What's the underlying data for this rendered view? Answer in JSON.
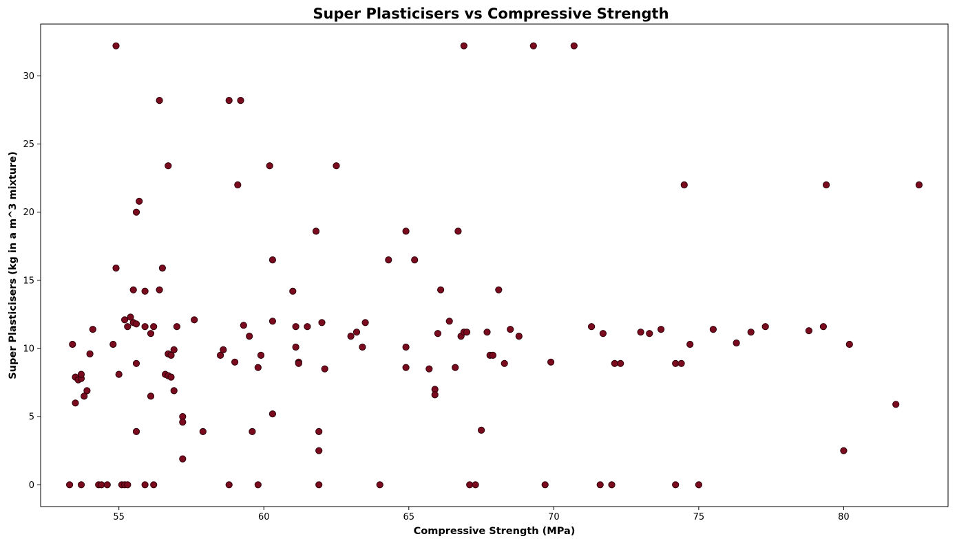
{
  "chart_data": {
    "type": "scatter",
    "title": "Super Plasticisers vs Compressive Strength",
    "xlabel": "Compressive Strength (MPa)",
    "ylabel": "Super Plasticisers (kg in a m^3 mixture)",
    "xlim": [
      52.3,
      83.6
    ],
    "ylim": [
      -1.6,
      33.8
    ],
    "xticks": [
      55,
      60,
      65,
      70,
      75,
      80
    ],
    "yticks": [
      0,
      5,
      10,
      15,
      20,
      25,
      30
    ],
    "grid": false,
    "legend": "none",
    "marker_color": "#7a0a1e",
    "marker_edge_color": "#2b0008",
    "points": [
      [
        53.3,
        0
      ],
      [
        53.7,
        0
      ],
      [
        54.3,
        0
      ],
      [
        54.4,
        0
      ],
      [
        54.6,
        0
      ],
      [
        55.1,
        0
      ],
      [
        55.2,
        0
      ],
      [
        55.3,
        0
      ],
      [
        55.9,
        0
      ],
      [
        56.2,
        0
      ],
      [
        58.8,
        0
      ],
      [
        59.8,
        0
      ],
      [
        61.9,
        0
      ],
      [
        64.0,
        0
      ],
      [
        67.1,
        0
      ],
      [
        67.3,
        0
      ],
      [
        69.7,
        0
      ],
      [
        71.6,
        0
      ],
      [
        72.0,
        0
      ],
      [
        74.2,
        0
      ],
      [
        75.0,
        0
      ],
      [
        53.4,
        10.3
      ],
      [
        53.5,
        7.9
      ],
      [
        53.5,
        6.0
      ],
      [
        53.6,
        7.7
      ],
      [
        53.7,
        7.8
      ],
      [
        53.7,
        8.1
      ],
      [
        53.8,
        6.5
      ],
      [
        53.9,
        6.9
      ],
      [
        54.0,
        9.6
      ],
      [
        54.1,
        11.4
      ],
      [
        54.8,
        10.3
      ],
      [
        54.9,
        15.9
      ],
      [
        54.9,
        32.2
      ],
      [
        55.0,
        8.1
      ],
      [
        55.2,
        12.1
      ],
      [
        55.3,
        11.6
      ],
      [
        55.4,
        12.3
      ],
      [
        55.5,
        14.3
      ],
      [
        55.5,
        11.9
      ],
      [
        55.6,
        20.0
      ],
      [
        55.6,
        3.9
      ],
      [
        55.6,
        8.9
      ],
      [
        55.6,
        11.8
      ],
      [
        55.7,
        20.8
      ],
      [
        55.9,
        14.2
      ],
      [
        55.9,
        11.6
      ],
      [
        56.1,
        6.5
      ],
      [
        56.1,
        11.1
      ],
      [
        56.2,
        11.6
      ],
      [
        56.4,
        14.3
      ],
      [
        56.4,
        28.2
      ],
      [
        56.5,
        15.9
      ],
      [
        56.6,
        8.1
      ],
      [
        56.7,
        8.0
      ],
      [
        56.7,
        9.6
      ],
      [
        56.7,
        23.4
      ],
      [
        56.8,
        9.5
      ],
      [
        56.8,
        7.9
      ],
      [
        56.9,
        6.9
      ],
      [
        56.9,
        9.9
      ],
      [
        57.0,
        11.6
      ],
      [
        57.2,
        5.0
      ],
      [
        57.2,
        4.6
      ],
      [
        57.2,
        1.9
      ],
      [
        57.6,
        12.1
      ],
      [
        57.9,
        3.9
      ],
      [
        58.5,
        9.5
      ],
      [
        58.6,
        9.9
      ],
      [
        58.8,
        28.2
      ],
      [
        59.0,
        9.0
      ],
      [
        59.1,
        22.0
      ],
      [
        59.2,
        28.2
      ],
      [
        59.3,
        11.7
      ],
      [
        59.5,
        10.9
      ],
      [
        59.6,
        3.9
      ],
      [
        59.8,
        8.6
      ],
      [
        59.9,
        9.5
      ],
      [
        60.2,
        23.4
      ],
      [
        60.3,
        5.2
      ],
      [
        60.3,
        16.5
      ],
      [
        60.3,
        12.0
      ],
      [
        61.0,
        14.2
      ],
      [
        61.1,
        11.6
      ],
      [
        61.1,
        10.1
      ],
      [
        61.2,
        9.0
      ],
      [
        61.2,
        8.9
      ],
      [
        61.5,
        11.6
      ],
      [
        61.8,
        18.6
      ],
      [
        61.9,
        3.9
      ],
      [
        61.9,
        2.5
      ],
      [
        62.0,
        11.9
      ],
      [
        62.1,
        8.5
      ],
      [
        62.5,
        23.4
      ],
      [
        63.0,
        10.9
      ],
      [
        63.2,
        11.2
      ],
      [
        63.4,
        10.1
      ],
      [
        63.5,
        11.9
      ],
      [
        64.3,
        16.5
      ],
      [
        64.9,
        18.6
      ],
      [
        64.9,
        10.1
      ],
      [
        64.9,
        8.6
      ],
      [
        65.2,
        16.5
      ],
      [
        65.7,
        8.5
      ],
      [
        65.9,
        7.0
      ],
      [
        65.9,
        6.6
      ],
      [
        66.0,
        11.1
      ],
      [
        66.1,
        14.3
      ],
      [
        66.4,
        12.0
      ],
      [
        66.6,
        8.6
      ],
      [
        66.7,
        18.6
      ],
      [
        66.8,
        10.9
      ],
      [
        66.9,
        11.2
      ],
      [
        66.9,
        32.2
      ],
      [
        67.0,
        11.2
      ],
      [
        67.5,
        4.0
      ],
      [
        67.7,
        11.2
      ],
      [
        67.8,
        9.5
      ],
      [
        67.9,
        9.5
      ],
      [
        68.1,
        14.3
      ],
      [
        68.3,
        8.9
      ],
      [
        68.5,
        11.4
      ],
      [
        68.8,
        10.9
      ],
      [
        69.3,
        32.2
      ],
      [
        69.9,
        9.0
      ],
      [
        70.7,
        32.2
      ],
      [
        71.3,
        11.6
      ],
      [
        71.7,
        11.1
      ],
      [
        72.1,
        8.9
      ],
      [
        72.3,
        8.9
      ],
      [
        73.0,
        11.2
      ],
      [
        73.3,
        11.1
      ],
      [
        73.7,
        11.4
      ],
      [
        74.2,
        8.9
      ],
      [
        74.4,
        8.9
      ],
      [
        74.5,
        22.0
      ],
      [
        74.7,
        10.3
      ],
      [
        75.5,
        11.4
      ],
      [
        76.3,
        10.4
      ],
      [
        76.8,
        11.2
      ],
      [
        77.3,
        11.6
      ],
      [
        78.8,
        11.3
      ],
      [
        79.3,
        11.6
      ],
      [
        79.4,
        22.0
      ],
      [
        80.0,
        2.5
      ],
      [
        80.2,
        10.3
      ],
      [
        81.8,
        5.9
      ],
      [
        82.6,
        22.0
      ]
    ]
  }
}
